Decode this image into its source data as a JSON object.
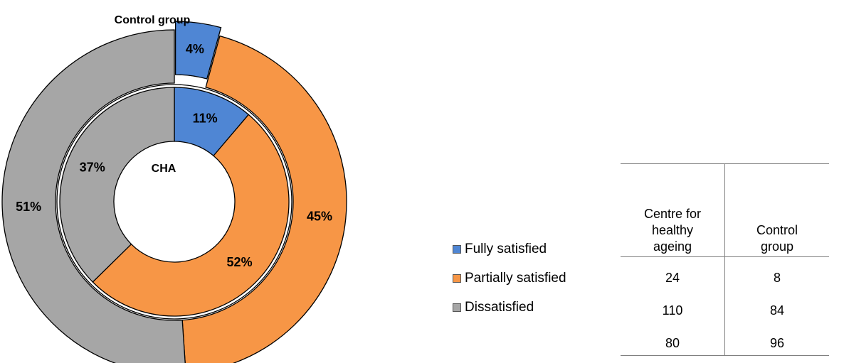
{
  "chart_data": {
    "type": "pie",
    "variant": "doughnut",
    "categories": [
      "Fully satisfied",
      "Partially satisfied",
      "Dissatisfied"
    ],
    "colors": [
      "#4f86d4",
      "#f79646",
      "#a6a6a6"
    ],
    "series": [
      {
        "name": "Control group",
        "ring": "outer",
        "counts": [
          8,
          84,
          96
        ],
        "percent_labels": [
          "4%",
          "45%",
          "51%"
        ]
      },
      {
        "name": "CHA",
        "ring": "inner",
        "counts": [
          24,
          110,
          80
        ],
        "percent_labels": [
          "11%",
          "52%",
          "37%"
        ]
      }
    ],
    "outer_title": "Control group",
    "inner_title": "CHA",
    "legend_position": "bottom-left of table"
  },
  "table": {
    "headers": [
      "Centre for\nhealthy\nageing",
      "Control\ngroup"
    ],
    "rows": [
      [
        "24",
        "8"
      ],
      [
        "110",
        "84"
      ],
      [
        "80",
        "96"
      ]
    ]
  },
  "legend": [
    {
      "label": "Fully satisfied",
      "color": "#4f86d4"
    },
    {
      "label": "Partially satisfied",
      "color": "#f79646"
    },
    {
      "label": "Dissatisfied",
      "color": "#a6a6a6"
    }
  ]
}
